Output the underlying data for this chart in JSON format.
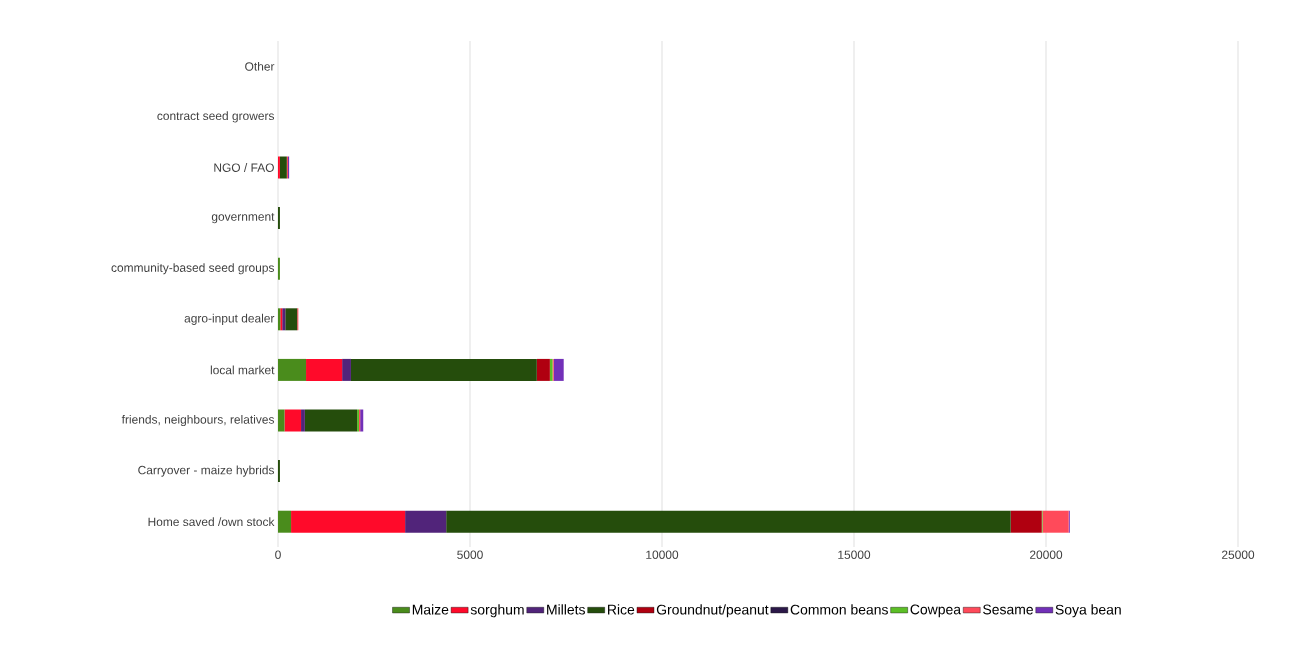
{
  "chart_data": {
    "type": "bar",
    "orientation": "horizontal",
    "stacked": true,
    "grid": "x",
    "legend": "bottom",
    "categories": [
      "Other",
      "contract seed growers",
      "NGO / FAO",
      "government",
      "community-based seed groups",
      "agro-input dealer",
      "local market",
      "friends, neighbours, relatives",
      "Carryover - maize hybrids",
      "Home saved /own stock"
    ],
    "xlim": [
      0,
      25000
    ],
    "xticks": [
      0,
      5000,
      10000,
      15000,
      20000,
      25000
    ],
    "series": [
      {
        "name": "Maize",
        "color": "#4a8c1c",
        "values": [
          0,
          0,
          0,
          0,
          50,
          60,
          730,
          170,
          0,
          340
        ]
      },
      {
        "name": "sorghum",
        "color": "#ff0a2a",
        "values": [
          0,
          0,
          50,
          0,
          0,
          50,
          940,
          430,
          0,
          2970
        ]
      },
      {
        "name": "Millets",
        "color": "#51247a",
        "values": [
          0,
          0,
          0,
          0,
          0,
          80,
          230,
          100,
          0,
          1070
        ]
      },
      {
        "name": "Rice",
        "color": "#254d0c",
        "values": [
          0,
          0,
          180,
          50,
          0,
          310,
          4840,
          1360,
          50,
          14700
        ]
      },
      {
        "name": "Groundnut/peanut",
        "color": "#b00010",
        "values": [
          0,
          0,
          0,
          0,
          0,
          0,
          340,
          0,
          0,
          810
        ]
      },
      {
        "name": "Common beans",
        "color": "#2b1848",
        "values": [
          0,
          0,
          0,
          0,
          0,
          0,
          0,
          0,
          0,
          0
        ]
      },
      {
        "name": "Cowpea",
        "color": "#5cbf26",
        "values": [
          0,
          0,
          0,
          0,
          0,
          0,
          70,
          50,
          0,
          20
        ]
      },
      {
        "name": "Sesame",
        "color": "#ff4a5a",
        "values": [
          0,
          0,
          30,
          0,
          0,
          30,
          30,
          30,
          0,
          680
        ]
      },
      {
        "name": "Soya bean",
        "color": "#7230b8",
        "values": [
          0,
          0,
          30,
          0,
          0,
          0,
          260,
          80,
          0,
          30
        ]
      }
    ]
  }
}
